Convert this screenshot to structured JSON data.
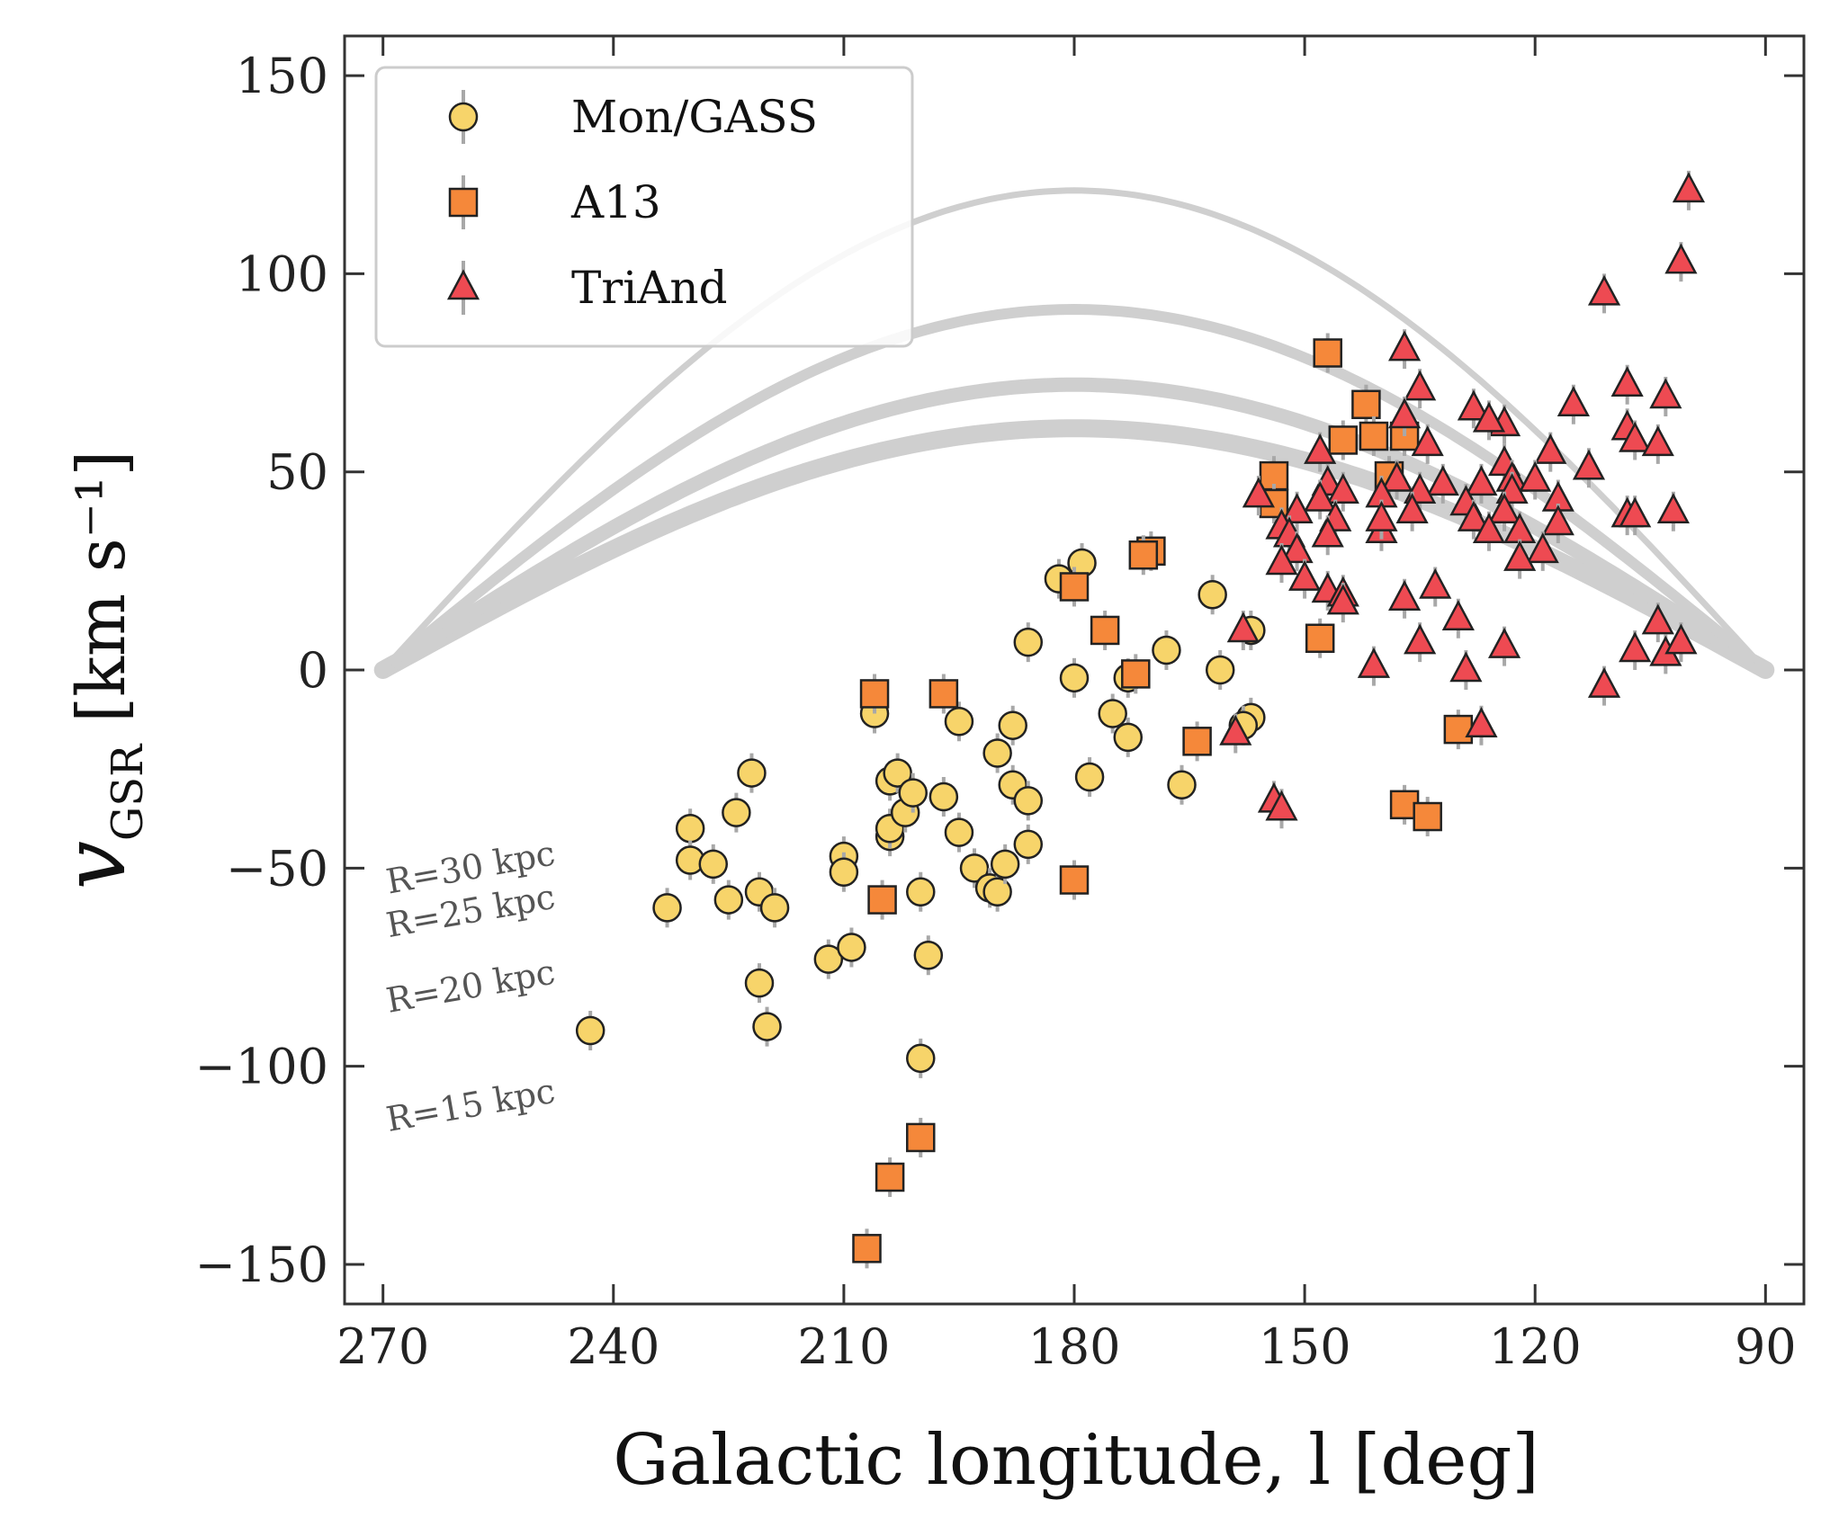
{
  "chart_data": {
    "type": "scatter",
    "title": "",
    "xlabel": "Galactic longitude, l [deg]",
    "ylabel_main": "v",
    "ylabel_sub": "GSR",
    "ylabel_units": "[km s⁻¹]",
    "xlim": [
      275,
      85
    ],
    "ylim": [
      -160,
      160
    ],
    "xticks": [
      270,
      240,
      210,
      180,
      150,
      120,
      90
    ],
    "yticks": [
      -150,
      -100,
      -50,
      0,
      50,
      100,
      150
    ],
    "xtick_labels": [
      "270",
      "240",
      "210",
      "180",
      "150",
      "120",
      "90"
    ],
    "ytick_labels": [
      "−150",
      "−100",
      "−50",
      "0",
      "50",
      "100",
      "150"
    ],
    "legend_position": "top-left",
    "model_curves": [
      {
        "label": "R=30 kpc",
        "amplitude": 61
      },
      {
        "label": "R=25 kpc",
        "amplitude": 72
      },
      {
        "label": "R=20 kpc",
        "amplitude": 91
      },
      {
        "label": "R=15 kpc",
        "amplitude": 121
      }
    ],
    "series": [
      {
        "name": "Mon/GASS",
        "marker": "circle",
        "color": "#f7d46a",
        "points": [
          [
            243,
            -91
          ],
          [
            233,
            -60
          ],
          [
            230,
            -40
          ],
          [
            230,
            -48
          ],
          [
            227,
            -49
          ],
          [
            225,
            -58
          ],
          [
            224,
            -36
          ],
          [
            222,
            -26
          ],
          [
            221,
            -56
          ],
          [
            221,
            -79
          ],
          [
            220,
            -90
          ],
          [
            219,
            -60
          ],
          [
            212,
            -73
          ],
          [
            210,
            -47
          ],
          [
            210,
            -51
          ],
          [
            209,
            -70
          ],
          [
            206,
            -11
          ],
          [
            204,
            -42
          ],
          [
            204,
            -28
          ],
          [
            203,
            -26
          ],
          [
            204,
            -40
          ],
          [
            202,
            -36
          ],
          [
            201,
            -31
          ],
          [
            200,
            -56
          ],
          [
            199,
            -72
          ],
          [
            200,
            -98
          ],
          [
            197,
            -32
          ],
          [
            195,
            -41
          ],
          [
            195,
            -13
          ],
          [
            193,
            -50
          ],
          [
            191,
            -55
          ],
          [
            190,
            -21
          ],
          [
            190,
            -56
          ],
          [
            189,
            -49
          ],
          [
            188,
            -29
          ],
          [
            188,
            -14
          ],
          [
            186,
            -33
          ],
          [
            186,
            7
          ],
          [
            186,
            -44
          ],
          [
            182,
            23
          ],
          [
            180,
            -2
          ],
          [
            179,
            27
          ],
          [
            178,
            -27
          ],
          [
            175,
            -11
          ],
          [
            173,
            -17
          ],
          [
            173,
            -2
          ],
          [
            166,
            -29
          ],
          [
            168,
            5
          ],
          [
            162,
            19
          ],
          [
            161,
            0
          ],
          [
            157,
            -12
          ],
          [
            158,
            -14
          ],
          [
            157,
            10
          ]
        ]
      },
      {
        "name": "A13",
        "marker": "square",
        "color": "#f5883a",
        "points": [
          [
            147,
            80
          ],
          [
            154,
            49
          ],
          [
            154,
            42
          ],
          [
            148,
            8
          ],
          [
            145,
            58
          ],
          [
            142,
            67
          ],
          [
            141,
            59
          ],
          [
            139,
            49
          ],
          [
            137,
            59
          ],
          [
            137,
            -34
          ],
          [
            134,
            -37
          ],
          [
            130,
            -15
          ],
          [
            170,
            30
          ],
          [
            171,
            29
          ],
          [
            172,
            -1
          ],
          [
            176,
            10
          ],
          [
            180,
            21
          ],
          [
            180,
            -53
          ],
          [
            164,
            -18
          ],
          [
            197,
            -6
          ],
          [
            206,
            -6
          ],
          [
            205,
            -58
          ],
          [
            200,
            -118
          ],
          [
            204,
            -128
          ],
          [
            207,
            -146
          ]
        ]
      },
      {
        "name": "TriAnd",
        "marker": "triangle",
        "color": "#ee4a52",
        "points": [
          [
            100,
            121
          ],
          [
            101,
            103
          ],
          [
            111,
            95
          ],
          [
            137,
            81
          ],
          [
            108,
            72
          ],
          [
            135,
            71
          ],
          [
            115,
            67
          ],
          [
            103,
            69
          ],
          [
            128,
            66
          ],
          [
            124,
            62
          ],
          [
            126,
            63
          ],
          [
            137,
            64
          ],
          [
            108,
            61
          ],
          [
            107,
            58
          ],
          [
            104,
            57
          ],
          [
            134,
            57
          ],
          [
            148,
            55
          ],
          [
            118,
            55
          ],
          [
            124,
            52
          ],
          [
            113,
            51
          ],
          [
            117,
            43
          ],
          [
            138,
            48
          ],
          [
            127,
            47
          ],
          [
            123,
            48
          ],
          [
            120,
            48
          ],
          [
            123,
            45
          ],
          [
            129,
            42
          ],
          [
            147,
            47
          ],
          [
            156,
            44
          ],
          [
            132,
            47
          ],
          [
            124,
            40
          ],
          [
            135,
            45
          ],
          [
            136,
            40
          ],
          [
            140,
            44
          ],
          [
            145,
            45
          ],
          [
            148,
            43
          ],
          [
            151,
            40
          ],
          [
            146,
            38
          ],
          [
            153,
            36
          ],
          [
            152,
            34
          ],
          [
            147,
            34
          ],
          [
            140,
            35
          ],
          [
            140,
            38
          ],
          [
            128,
            38
          ],
          [
            126,
            35
          ],
          [
            122,
            35
          ],
          [
            117,
            37
          ],
          [
            119,
            30
          ],
          [
            122,
            28
          ],
          [
            108,
            39
          ],
          [
            107,
            39
          ],
          [
            102,
            40
          ],
          [
            151,
            30
          ],
          [
            153,
            27
          ],
          [
            150,
            23
          ],
          [
            147,
            20
          ],
          [
            145,
            19
          ],
          [
            145,
            17
          ],
          [
            158,
            10
          ],
          [
            137,
            18
          ],
          [
            133,
            21
          ],
          [
            130,
            13
          ],
          [
            129,
            0
          ],
          [
            124,
            6
          ],
          [
            135,
            7
          ],
          [
            141,
            1
          ],
          [
            107,
            5
          ],
          [
            104,
            12
          ],
          [
            103,
            4
          ],
          [
            101,
            7
          ],
          [
            111,
            -4
          ],
          [
            127,
            -14
          ],
          [
            159,
            -16
          ],
          [
            154,
            -33
          ],
          [
            153,
            -35
          ]
        ]
      }
    ]
  }
}
